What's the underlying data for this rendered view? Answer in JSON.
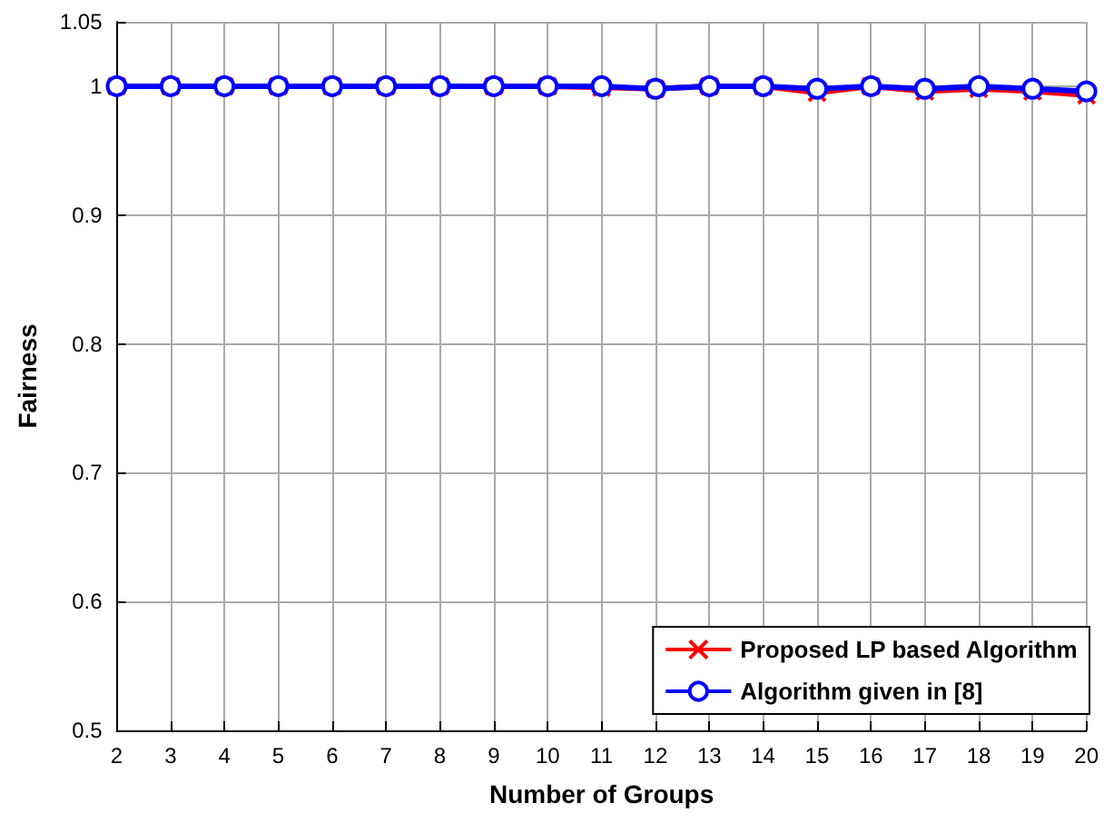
{
  "chart_data": {
    "type": "line",
    "xlabel": "Number of Groups",
    "ylabel": "Fairness",
    "x": [
      2,
      3,
      4,
      5,
      6,
      7,
      8,
      9,
      10,
      11,
      12,
      13,
      14,
      15,
      16,
      17,
      18,
      19,
      20
    ],
    "series": [
      {
        "name": "Proposed LP based Algorithm",
        "color": "#ff0000",
        "marker": "cross",
        "values": [
          1,
          1,
          1,
          1,
          1,
          1,
          1,
          1,
          1,
          0.999,
          0.998,
          1,
          1,
          0.995,
          1,
          0.996,
          0.998,
          0.996,
          0.993
        ]
      },
      {
        "name": "Algorithm given in [8]",
        "color": "#0000ff",
        "marker": "circle",
        "values": [
          1,
          1,
          1,
          1,
          1,
          1,
          1,
          1,
          1,
          1,
          0.998,
          1,
          1,
          0.998,
          1,
          0.998,
          1,
          0.998,
          0.996
        ]
      }
    ],
    "xlim": [
      2,
      20
    ],
    "xticks": [
      2,
      3,
      4,
      5,
      6,
      7,
      8,
      9,
      10,
      11,
      12,
      13,
      14,
      15,
      16,
      17,
      18,
      19,
      20
    ],
    "ylim": [
      0.5,
      1.05
    ],
    "yticks": [
      0.5,
      0.6,
      0.7,
      0.8,
      0.9,
      1,
      1.05
    ],
    "grid": true,
    "legend": "bottom right",
    "line_style": "solid"
  }
}
